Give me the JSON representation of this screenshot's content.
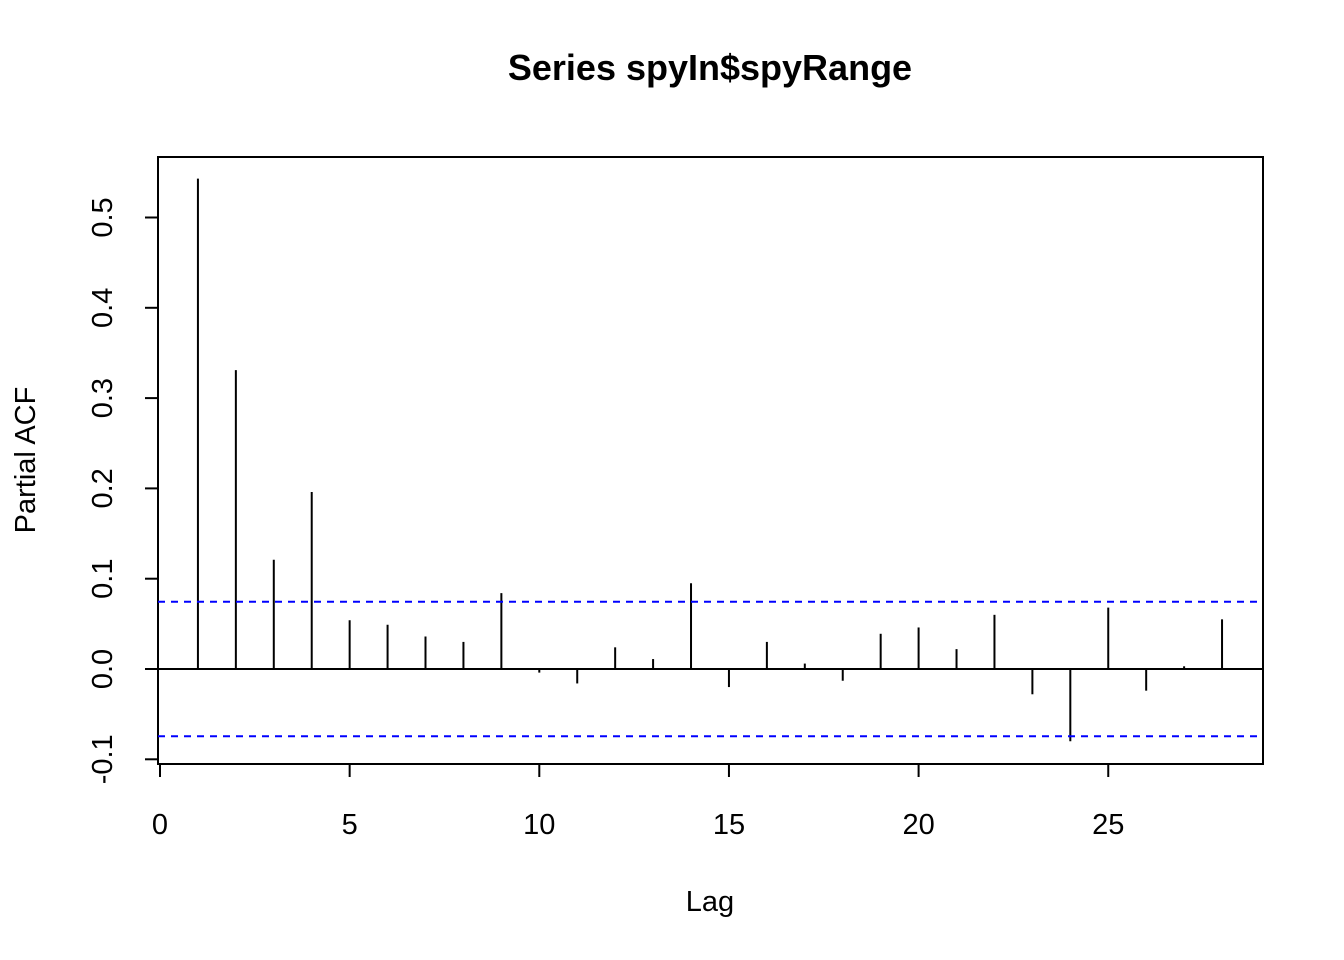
{
  "chart_data": {
    "type": "bar",
    "title": "Series  spyIn$spyRange",
    "xlabel": "Lag",
    "ylabel": "Partial ACF",
    "xlim": [
      0,
      29
    ],
    "ylim": [
      -0.1,
      0.55
    ],
    "x_ticks": [
      "0",
      "5",
      "10",
      "15",
      "20",
      "25"
    ],
    "y_ticks": [
      "-0.1",
      "0.0",
      "0.1",
      "0.2",
      "0.3",
      "0.4",
      "0.5"
    ],
    "lags": [
      1,
      2,
      3,
      4,
      5,
      6,
      7,
      8,
      9,
      10,
      11,
      12,
      13,
      14,
      15,
      16,
      17,
      18,
      19,
      20,
      21,
      22,
      23,
      24,
      25,
      26,
      27,
      28
    ],
    "values": [
      0.543,
      0.331,
      0.121,
      0.196,
      0.054,
      0.049,
      0.036,
      0.03,
      0.084,
      -0.004,
      -0.016,
      0.024,
      0.011,
      0.095,
      -0.02,
      0.03,
      0.006,
      -0.013,
      0.039,
      0.046,
      0.022,
      0.06,
      -0.028,
      -0.08,
      0.068,
      -0.024,
      0.003,
      0.055
    ],
    "confidence_bounds": [
      0.0745,
      -0.0745
    ],
    "confidence_color": "#0000ff",
    "grid": false
  }
}
